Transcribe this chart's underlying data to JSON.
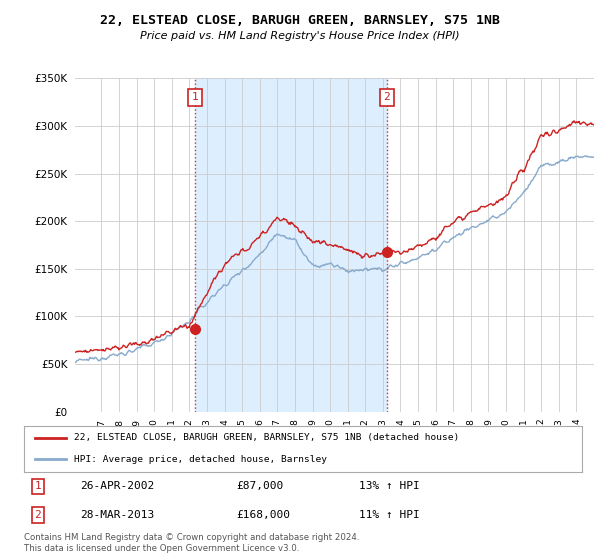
{
  "title": "22, ELSTEAD CLOSE, BARUGH GREEN, BARNSLEY, S75 1NB",
  "subtitle": "Price paid vs. HM Land Registry's House Price Index (HPI)",
  "ylim": [
    0,
    350000
  ],
  "yticks": [
    0,
    50000,
    100000,
    150000,
    200000,
    250000,
    300000,
    350000
  ],
  "xlim_start": 1995.5,
  "xlim_end": 2025.0,
  "line_color_red": "#cc2222",
  "line_color_blue": "#88aacc",
  "transaction1_year": 2002.32,
  "transaction1_price": 87000,
  "transaction2_year": 2013.23,
  "transaction2_price": 168000,
  "shade_color": "#ddeeff",
  "legend_label_red": "22, ELSTEAD CLOSE, BARUGH GREEN, BARNSLEY, S75 1NB (detached house)",
  "legend_label_blue": "HPI: Average price, detached house, Barnsley",
  "table_rows": [
    {
      "num": "1",
      "date": "26-APR-2002",
      "price": "£87,000",
      "change": "13% ↑ HPI"
    },
    {
      "num": "2",
      "date": "28-MAR-2013",
      "price": "£168,000",
      "change": "11% ↑ HPI"
    }
  ],
  "footnote": "Contains HM Land Registry data © Crown copyright and database right 2024.\nThis data is licensed under the Open Government Licence v3.0.",
  "background_color": "#ffffff",
  "grid_color": "#cccccc"
}
